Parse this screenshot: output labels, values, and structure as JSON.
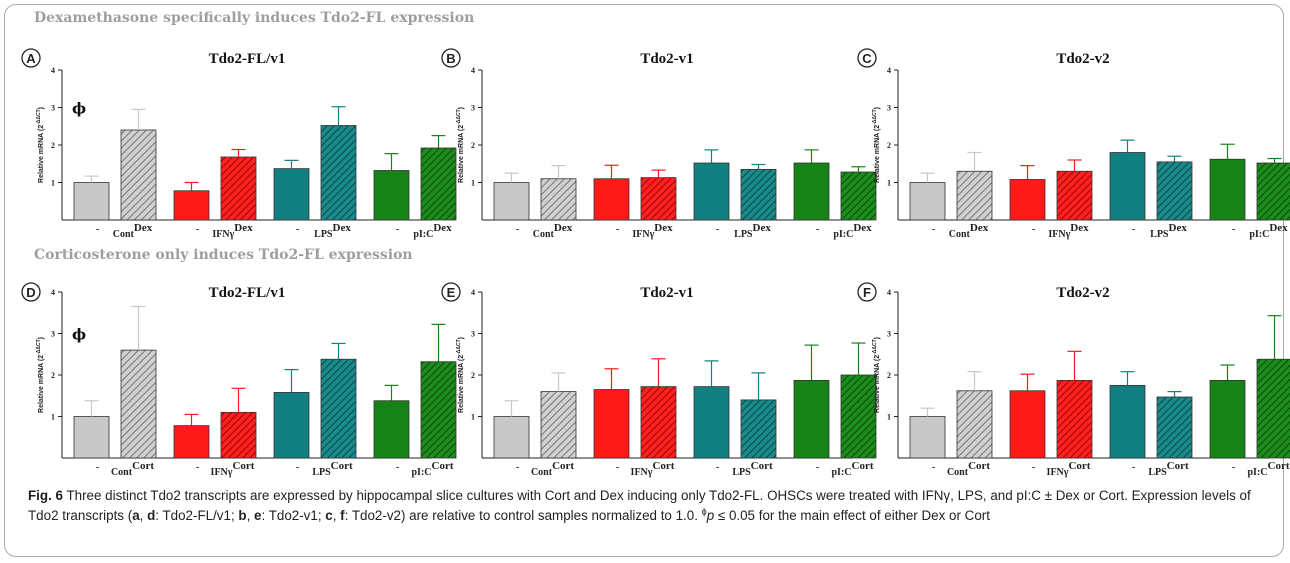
{
  "section_titles": [
    "Dexamethasone specifically induces Tdo2-FL expression",
    "Corticosterone only induces Tdo2-FL expression"
  ],
  "colors": {
    "control": "#c8c8c8",
    "ifng": "#ff1a1a",
    "lps": "#128080",
    "pic": "#178317",
    "section_title": "#9e9e9e"
  },
  "chart_data": [
    {
      "panel": "A",
      "type": "bar",
      "title": "Tdo2-FL/v1",
      "ylabel": "Relative mRNA (2^-ΔΔCT)",
      "ylim": [
        0,
        4
      ],
      "yticks": [
        1,
        2,
        3,
        4
      ],
      "annotation": "ϕ",
      "categories": [
        "-",
        "Cont",
        "-",
        "IFNγ",
        "-",
        "LPS",
        "-",
        "pI:C"
      ],
      "treatment": "Dex",
      "values": [
        1.0,
        2.4,
        0.78,
        1.68,
        1.37,
        2.52,
        1.32,
        1.92
      ],
      "errors": [
        0.17,
        0.55,
        0.22,
        0.2,
        0.22,
        0.5,
        0.45,
        0.33
      ]
    },
    {
      "panel": "B",
      "type": "bar",
      "title": "Tdo2-v1",
      "ylabel": "Relative mRNA (2^-ΔΔCT)",
      "ylim": [
        0,
        4
      ],
      "yticks": [
        1,
        2,
        3,
        4
      ],
      "annotation": "",
      "categories": [
        "-",
        "Cont",
        "-",
        "IFNγ",
        "-",
        "LPS",
        "-",
        "pI:C"
      ],
      "treatment": "Dex",
      "values": [
        1.0,
        1.1,
        1.1,
        1.13,
        1.52,
        1.35,
        1.52,
        1.28
      ],
      "errors": [
        0.25,
        0.35,
        0.36,
        0.2,
        0.35,
        0.13,
        0.35,
        0.14
      ]
    },
    {
      "panel": "C",
      "type": "bar",
      "title": "Tdo2-v2",
      "ylabel": "Relative mRNA (2^-ΔΔCT)",
      "ylim": [
        0,
        4
      ],
      "yticks": [
        1,
        2,
        3,
        4
      ],
      "annotation": "",
      "categories": [
        "-",
        "Cont",
        "-",
        "IFNγ",
        "-",
        "LPS",
        "-",
        "pI:C"
      ],
      "treatment": "Dex",
      "values": [
        1.0,
        1.3,
        1.08,
        1.3,
        1.8,
        1.55,
        1.62,
        1.52
      ],
      "errors": [
        0.25,
        0.5,
        0.37,
        0.3,
        0.33,
        0.15,
        0.4,
        0.12
      ]
    },
    {
      "panel": "D",
      "type": "bar",
      "title": "Tdo2-FL/v1",
      "ylabel": "Relative mRNA (2^-ΔΔCT)",
      "ylim": [
        0,
        4
      ],
      "yticks": [
        1,
        2,
        3,
        4
      ],
      "annotation": "ϕ",
      "categories": [
        "-",
        "Cont",
        "-",
        "IFNγ",
        "-",
        "LPS",
        "-",
        "pI:C"
      ],
      "treatment": "Cort",
      "values": [
        1.0,
        2.6,
        0.78,
        1.1,
        1.58,
        2.38,
        1.38,
        2.32
      ],
      "errors": [
        0.38,
        1.05,
        0.27,
        0.58,
        0.55,
        0.38,
        0.37,
        0.9
      ]
    },
    {
      "panel": "E",
      "type": "bar",
      "title": "Tdo2-v1",
      "ylabel": "Relative mRNA (2^-ΔΔCT)",
      "ylim": [
        0,
        4
      ],
      "yticks": [
        1,
        2,
        3,
        4
      ],
      "annotation": "",
      "categories": [
        "-",
        "Cont",
        "-",
        "IFNγ",
        "-",
        "LPS",
        "-",
        "pI:C"
      ],
      "treatment": "Cort",
      "values": [
        1.0,
        1.6,
        1.65,
        1.72,
        1.72,
        1.4,
        1.87,
        2.0
      ],
      "errors": [
        0.38,
        0.45,
        0.5,
        0.67,
        0.62,
        0.65,
        0.85,
        0.77
      ]
    },
    {
      "panel": "F",
      "type": "bar",
      "title": "Tdo2-v2",
      "ylabel": "Relative mRNA (2^-ΔΔCT)",
      "ylim": [
        0,
        4
      ],
      "yticks": [
        1,
        2,
        3,
        4
      ],
      "annotation": "",
      "categories": [
        "-",
        "Cont",
        "-",
        "IFNγ",
        "-",
        "LPS",
        "-",
        "pI:C"
      ],
      "treatment": "Cort",
      "values": [
        1.0,
        1.62,
        1.62,
        1.87,
        1.75,
        1.47,
        1.87,
        2.38
      ],
      "errors": [
        0.2,
        0.46,
        0.4,
        0.7,
        0.33,
        0.13,
        0.37,
        1.05
      ]
    }
  ],
  "caption": {
    "fig_label": "Fig. 6",
    "part1": " Three distinct Tdo2 transcripts are expressed by hippocampal slice cultures with Cort and Dex inducing only Tdo2-FL. OHSCs were treated with IFNγ, LPS, and pI:C ± Dex or Cort. Expression levels of Tdo2 transcripts (",
    "a": "a",
    "comma1": ", ",
    "d": "d",
    "part2": ": Tdo2-FL/v1; ",
    "b": "b",
    "comma2": ", ",
    "e": "e",
    "part3": ": Tdo2-v1; ",
    "c": "c",
    "comma3": ", ",
    "f": "f",
    "part4": ": Tdo2-v2) are relative to control samples normalized to 1.0. ",
    "phi": "ϕ",
    "p": "p",
    "part5": " ≤ 0.05 for the main effect of either Dex or Cort"
  }
}
